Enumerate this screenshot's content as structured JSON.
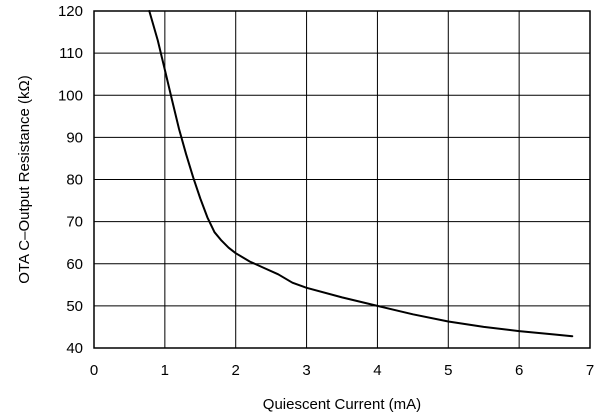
{
  "chart_data": {
    "type": "line",
    "title": "",
    "xlabel": "Quiescent Current (mA)",
    "ylabel": "OTA C–Output Resistance (kΩ)",
    "xlim": [
      0,
      7
    ],
    "ylim": [
      40,
      120
    ],
    "xticks": [
      "0",
      "1",
      "2",
      "3",
      "4",
      "5",
      "6",
      "7"
    ],
    "yticks": [
      "40",
      "50",
      "60",
      "70",
      "80",
      "90",
      "100",
      "110",
      "120"
    ],
    "grid": true,
    "series": [
      {
        "x": [
          0.78,
          0.9,
          1.0,
          1.1,
          1.2,
          1.3,
          1.4,
          1.5,
          1.6,
          1.7,
          1.8,
          1.9,
          2.0,
          2.2,
          2.4,
          2.6,
          2.8,
          3.0,
          3.5,
          4.0,
          4.5,
          5.0,
          5.5,
          6.0,
          6.5,
          6.75
        ],
        "y": [
          120,
          113,
          106,
          99,
          92,
          86,
          80.5,
          75.5,
          71,
          67.5,
          65.5,
          63.8,
          62.5,
          60.5,
          59,
          57.5,
          55.5,
          54.3,
          52,
          50,
          48,
          46.3,
          45,
          44,
          43.2,
          42.8
        ]
      }
    ]
  }
}
